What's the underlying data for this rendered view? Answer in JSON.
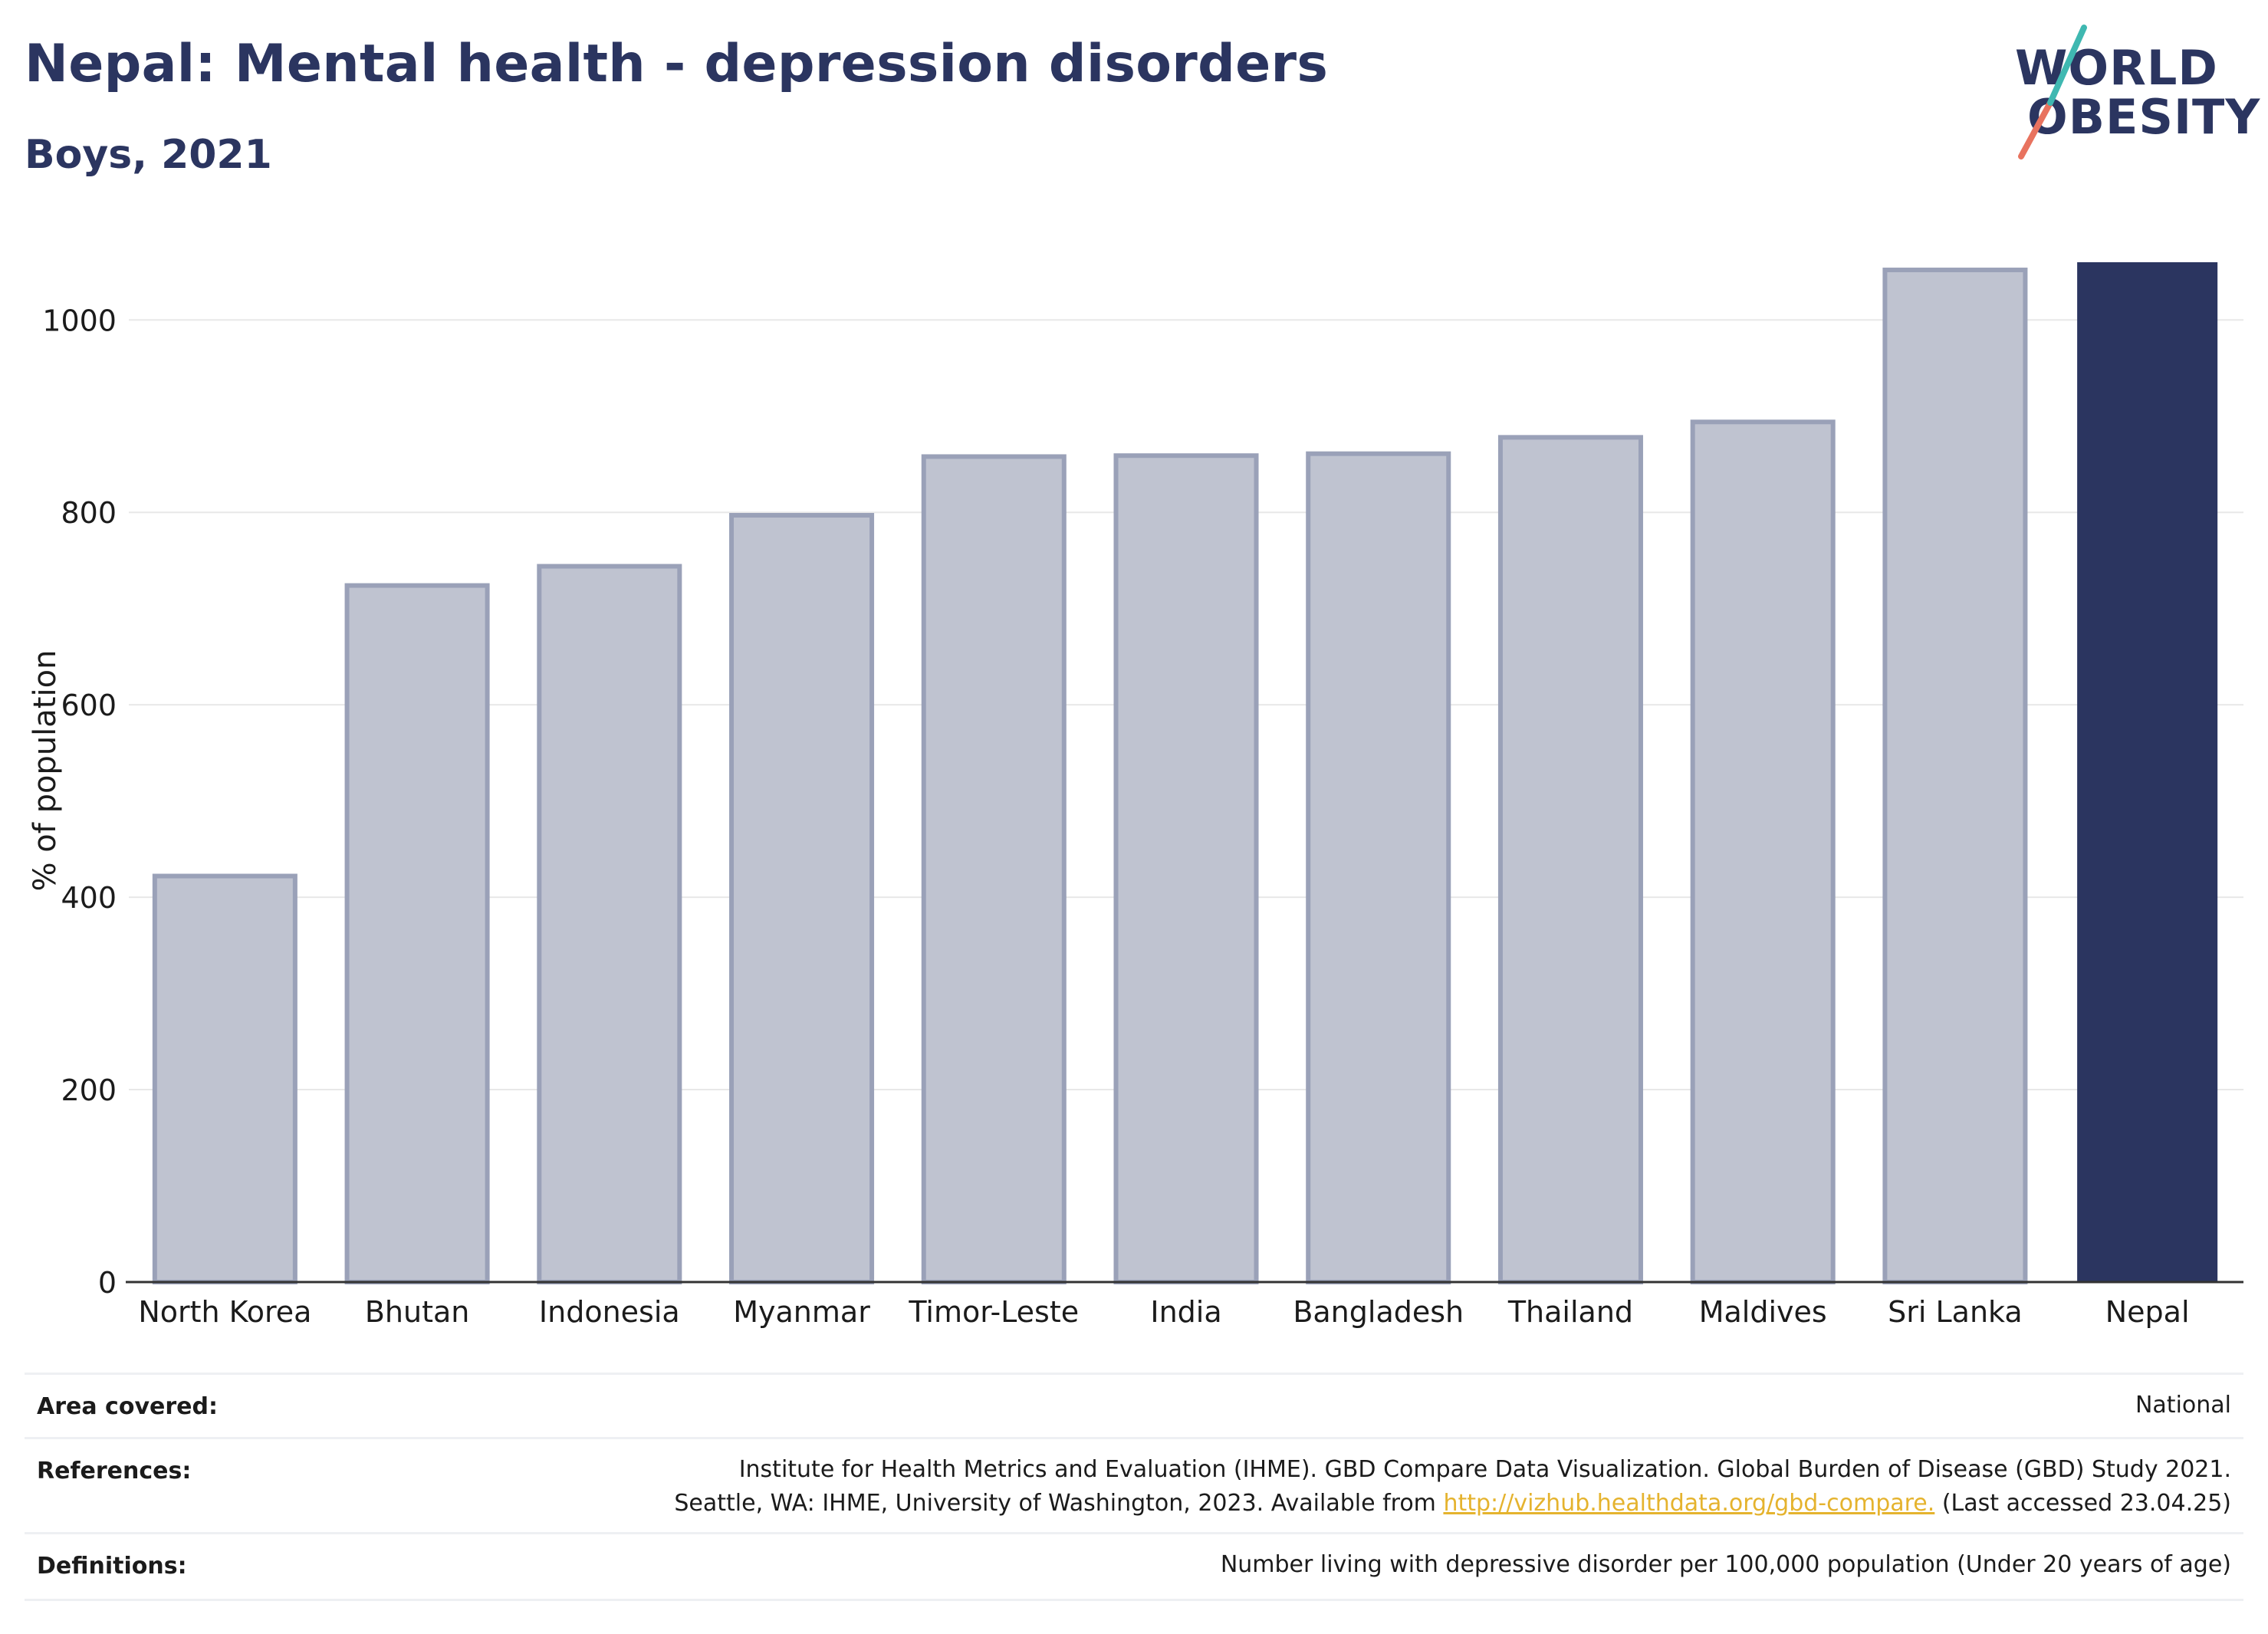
{
  "header": {
    "title": "Nepal: Mental health - depression disorders",
    "subtitle": "Boys, 2021"
  },
  "logo": {
    "line1": "WORLD",
    "line2": "OBESITY"
  },
  "chart_data": {
    "type": "bar",
    "title": "Nepal: Mental health - depression disorders",
    "subtitle": "Boys, 2021",
    "ylabel": "% of population",
    "xlabel": "",
    "ylim": [
      0,
      1060
    ],
    "yticks": [
      0,
      200,
      400,
      600,
      800,
      1000
    ],
    "grid": true,
    "categories": [
      "North Korea",
      "Bhutan",
      "Indonesia",
      "Myanmar",
      "Timor-Leste",
      "India",
      "Bangladesh",
      "Thailand",
      "Maldives",
      "Sri Lanka",
      "Nepal"
    ],
    "values": [
      422,
      724,
      744,
      797,
      858,
      859,
      861,
      878,
      894,
      1052,
      1060
    ],
    "highlight": "Nepal",
    "colors": {
      "bar": "#bfc3d0",
      "bar_edge": "#9aa1b8",
      "highlight": "#2b3560",
      "grid": "#e8e8e8",
      "axis": "#333333"
    }
  },
  "meta": {
    "area_label": "Area covered:",
    "area_value": "National",
    "references_label": "References:",
    "references_line1": "Institute for Health Metrics and Evaluation (IHME). GBD Compare Data Visualization. Global Burden of Disease (GBD) Study 2021.",
    "references_line2_pre": "Seattle, WA: IHME, University of Washington, 2023. Available from ",
    "references_link": "http://vizhub.healthdata.org/gbd-compare.",
    "references_line2_post": " (Last accessed 23.04.25)",
    "definitions_label": "Definitions:",
    "definitions_value": "Number living with depressive disorder per 100,000 population (Under 20 years of age)"
  }
}
